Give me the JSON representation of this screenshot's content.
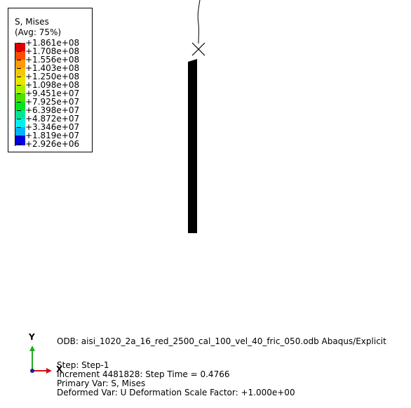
{
  "legend": {
    "title": "S, Mises",
    "avg": "(Avg: 75%)",
    "levels": [
      {
        "label": "+1.861e+08",
        "color": "#e00000"
      },
      {
        "label": "+1.708e+08",
        "color": "#ff4a00"
      },
      {
        "label": "+1.556e+08",
        "color": "#ff9a00"
      },
      {
        "label": "+1.403e+08",
        "color": "#f2c800"
      },
      {
        "label": "+1.250e+08",
        "color": "#e6e600"
      },
      {
        "label": "+1.098e+08",
        "color": "#a6f000"
      },
      {
        "label": "+9.451e+07",
        "color": "#4ee000"
      },
      {
        "label": "+7.925e+07",
        "color": "#00e61e"
      },
      {
        "label": "+6.398e+07",
        "color": "#00e696"
      },
      {
        "label": "+4.872e+07",
        "color": "#00f0f0"
      },
      {
        "label": "+3.346e+07",
        "color": "#00b4ff"
      },
      {
        "label": "+1.819e+07",
        "color": "#0060ff"
      },
      {
        "label": "+2.926e+06",
        "color": "#0000e0"
      }
    ]
  },
  "info": {
    "odb_line": "ODB: aisi_1020_2a_16_red_2500_cal_100_vel_40_fric_050.odb    Abaqus/Explicit",
    "step_line": "Step: Step-1",
    "increment_line": "Increment    4481828: Step Time =    0.4766",
    "primary_var_line": "Primary Var: S, Mises",
    "deformed_var_line": "Deformed Var: U   Deformation Scale Factor: +1.000e+00"
  },
  "triad": {
    "y_label": "Y",
    "x_label": "X",
    "y_color": "#22aa22",
    "x_color": "#cc1111",
    "z_color": "#1a1aa0"
  }
}
